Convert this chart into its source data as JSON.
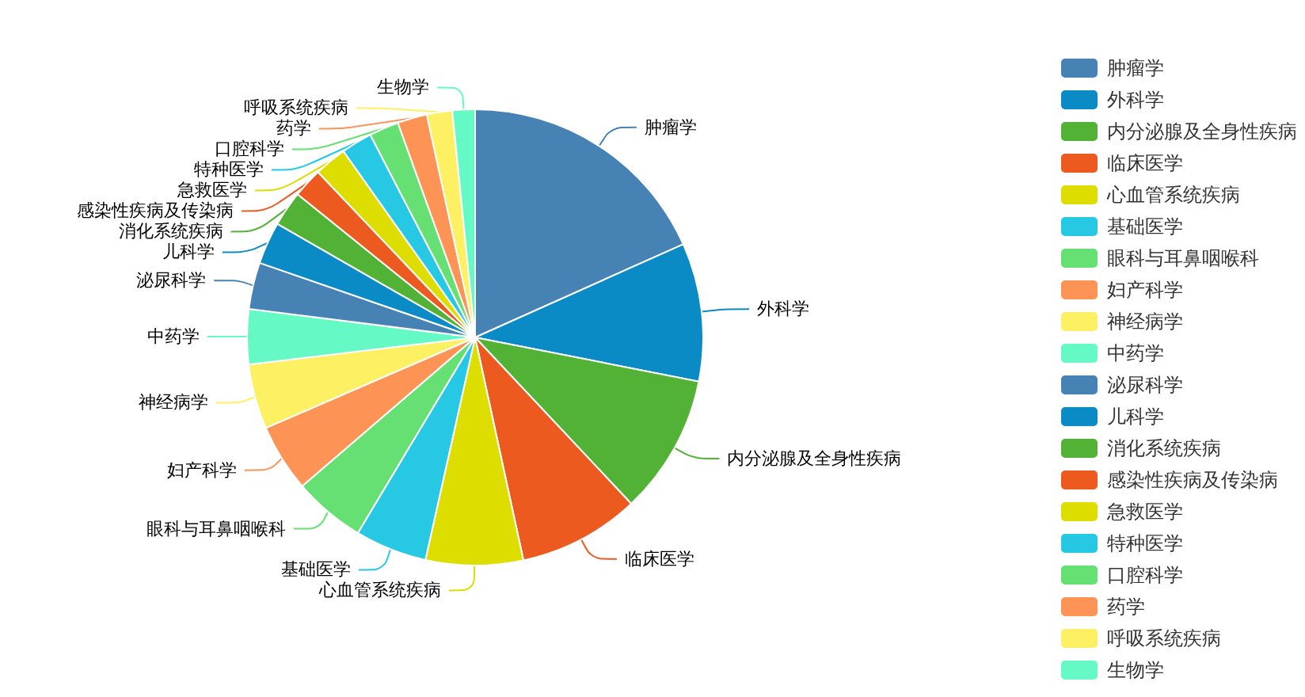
{
  "chart_data": {
    "type": "pie",
    "categories": [
      "肿瘤学",
      "外科学",
      "内分泌腺及全身性疾病",
      "临床医学",
      "心血管系统疾病",
      "基础医学",
      "眼科与耳鼻咽喉科",
      "妇产科学",
      "神经病学",
      "中药学",
      "泌尿科学",
      "儿科学",
      "消化系统疾病",
      "感染性疾病及传染病",
      "急救医学",
      "特种医学",
      "口腔科学",
      "药学",
      "呼吸系统疾病",
      "生物学"
    ],
    "values": [
      18.3,
      9.8,
      9.9,
      8.6,
      6.9,
      5.1,
      5.1,
      4.8,
      4.6,
      3.9,
      3.3,
      3.0,
      2.5,
      2.1,
      2.3,
      2.2,
      2.1,
      2.1,
      1.8,
      1.6
    ],
    "colors": [
      "#4682b4",
      "#0b8bc6",
      "#52b236",
      "#ec5a1f",
      "#dddd00",
      "#26c8e4",
      "#66e073",
      "#fd9455",
      "#fdf063",
      "#64f9c5",
      "#4682b4",
      "#0b8bc6",
      "#52b236",
      "#ec5a1f",
      "#dddd00",
      "#26c8e4",
      "#66e073",
      "#fd9455",
      "#fdf063",
      "#64f9c5"
    ],
    "legend": "right"
  }
}
